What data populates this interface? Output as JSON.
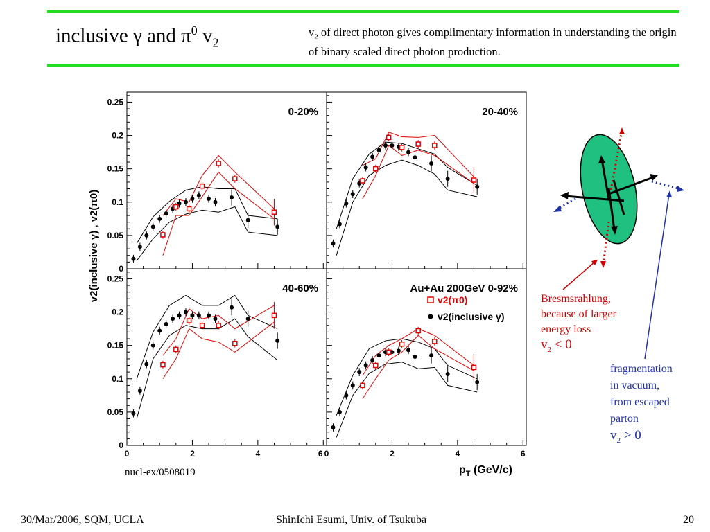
{
  "header": {
    "title_main": "inclusive γ and π",
    "title_sup": "0",
    "title_v": " v",
    "title_sub": "2",
    "subtitle_v": "v",
    "subtitle_sub": "2",
    "subtitle_rest": " of direct photon gives complimentary information in understanding the origin of binary scaled direct photon production."
  },
  "colors": {
    "rule": "#22dd22",
    "pi0": "#e00000",
    "gamma": "#000000",
    "ellipse": "#20c080",
    "blue_arrow": "#2233aa",
    "red_arrow": "#d00000"
  },
  "chart_data": {
    "type": "scatter",
    "x_axis_label": "p",
    "x_axis_label_sub": "T",
    "x_axis_label_rest": " (GeV/c)",
    "y_axis_label": "v2(inclusive γ) ,  v2(π0)",
    "y_ticks": [
      "0",
      "0.05",
      "0.1",
      "0.15",
      "0.2",
      "0.25"
    ],
    "x_ticks": [
      "0",
      "2",
      "4",
      "6"
    ],
    "xlim": [
      0,
      6.1
    ],
    "ylim": [
      0,
      0.265
    ],
    "legend": {
      "pi0": "v2(π0)",
      "gamma": "v2(inclusive γ)",
      "placement": "top-right of bottom-right panel"
    },
    "panels": [
      {
        "label": "0-20%",
        "gamma": {
          "x": [
            0.2,
            0.4,
            0.6,
            0.8,
            1.0,
            1.2,
            1.4,
            1.6,
            1.8,
            2.0,
            2.2,
            2.5,
            2.7,
            3.2,
            3.7,
            4.6
          ],
          "y": [
            0.015,
            0.033,
            0.05,
            0.063,
            0.075,
            0.083,
            0.09,
            0.098,
            0.1,
            0.105,
            0.11,
            0.105,
            0.1,
            0.107,
            0.073,
            0.063
          ]
        },
        "pi0": {
          "x": [
            1.1,
            1.5,
            1.9,
            2.3,
            2.8,
            3.3,
            4.5
          ],
          "y": [
            0.051,
            0.093,
            0.09,
            0.124,
            0.158,
            0.135,
            0.085
          ]
        },
        "gamma_band_upper": {
          "x": [
            0.3,
            0.8,
            1.3,
            1.8,
            2.3,
            2.8,
            3.3,
            3.7,
            4.6
          ],
          "y": [
            0.038,
            0.078,
            0.101,
            0.118,
            0.123,
            0.12,
            0.12,
            0.08,
            0.075
          ]
        },
        "gamma_band_lower": {
          "x": [
            0.3,
            0.8,
            1.3,
            1.8,
            2.3,
            2.8,
            3.3,
            3.7,
            4.6
          ],
          "y": [
            0.012,
            0.045,
            0.07,
            0.082,
            0.088,
            0.085,
            0.093,
            0.055,
            0.05
          ]
        },
        "pi0_band_upper": {
          "x": [
            1.1,
            1.5,
            1.9,
            2.3,
            2.8,
            3.3,
            4.5
          ],
          "y": [
            0.08,
            0.105,
            0.1,
            0.14,
            0.17,
            0.145,
            0.09
          ]
        },
        "pi0_band_lower": {
          "x": [
            1.1,
            1.5,
            1.9,
            2.3,
            2.8,
            3.3,
            4.5
          ],
          "y": [
            0.02,
            0.08,
            0.08,
            0.108,
            0.145,
            0.12,
            0.075
          ]
        }
      },
      {
        "label": "20-40%",
        "gamma": {
          "x": [
            0.2,
            0.4,
            0.6,
            0.8,
            1.0,
            1.2,
            1.4,
            1.6,
            1.8,
            2.0,
            2.2,
            2.5,
            2.7,
            3.2,
            3.7,
            4.6
          ],
          "y": [
            0.038,
            0.067,
            0.098,
            0.112,
            0.128,
            0.152,
            0.168,
            0.178,
            0.185,
            0.185,
            0.183,
            0.175,
            0.167,
            0.158,
            0.135,
            0.123
          ]
        },
        "pi0": {
          "x": [
            1.1,
            1.5,
            1.9,
            2.3,
            2.8,
            3.3,
            4.5
          ],
          "y": [
            0.132,
            0.15,
            0.197,
            0.182,
            0.187,
            0.185,
            0.133
          ]
        },
        "gamma_band_upper": {
          "x": [
            0.3,
            0.8,
            1.3,
            1.8,
            2.3,
            2.8,
            3.3,
            3.7,
            4.6
          ],
          "y": [
            0.06,
            0.135,
            0.172,
            0.19,
            0.188,
            0.18,
            0.172,
            0.152,
            0.125
          ]
        },
        "gamma_band_lower": {
          "x": [
            0.3,
            0.8,
            1.3,
            1.8,
            2.3,
            2.8,
            3.3,
            3.7,
            4.6
          ],
          "y": [
            0.02,
            0.1,
            0.14,
            0.155,
            0.163,
            0.155,
            0.142,
            0.118,
            0.108
          ]
        },
        "pi0_band_upper": {
          "x": [
            1.1,
            1.5,
            1.9,
            2.3,
            2.8,
            3.3,
            4.5
          ],
          "y": [
            0.155,
            0.165,
            0.205,
            0.198,
            0.197,
            0.2,
            0.138
          ]
        },
        "pi0_band_lower": {
          "x": [
            1.1,
            1.5,
            1.9,
            2.3,
            2.8,
            3.3,
            4.5
          ],
          "y": [
            0.105,
            0.14,
            0.185,
            0.17,
            0.178,
            0.17,
            0.128
          ]
        }
      },
      {
        "label": "40-60%",
        "gamma": {
          "x": [
            0.2,
            0.4,
            0.6,
            0.8,
            1.0,
            1.2,
            1.4,
            1.6,
            1.8,
            2.0,
            2.2,
            2.5,
            2.7,
            3.2,
            3.7,
            4.6
          ],
          "y": [
            0.048,
            0.082,
            0.122,
            0.15,
            0.172,
            0.182,
            0.19,
            0.195,
            0.2,
            0.195,
            0.195,
            0.195,
            0.19,
            0.207,
            0.19,
            0.157
          ]
        },
        "pi0": {
          "x": [
            1.1,
            1.5,
            1.9,
            2.3,
            2.8,
            3.3,
            4.5
          ],
          "y": [
            0.121,
            0.144,
            0.187,
            0.18,
            0.18,
            0.153,
            0.195
          ]
        },
        "gamma_band_upper": {
          "x": [
            0.3,
            0.8,
            1.3,
            1.8,
            2.3,
            2.8,
            3.3,
            3.7,
            4.6
          ],
          "y": [
            0.1,
            0.17,
            0.21,
            0.225,
            0.21,
            0.21,
            0.225,
            0.195,
            0.175
          ]
        },
        "gamma_band_lower": {
          "x": [
            0.3,
            0.8,
            1.3,
            1.8,
            2.3,
            2.8,
            3.3,
            3.7,
            4.6
          ],
          "y": [
            0.04,
            0.13,
            0.165,
            0.18,
            0.175,
            0.175,
            0.19,
            0.163,
            0.128
          ]
        },
        "pi0_band_upper": {
          "x": [
            1.1,
            1.5,
            1.9,
            2.3,
            2.8,
            3.3,
            4.5
          ],
          "y": [
            0.135,
            0.16,
            0.205,
            0.19,
            0.195,
            0.175,
            0.21
          ]
        },
        "pi0_band_lower": {
          "x": [
            1.1,
            1.5,
            1.9,
            2.3,
            2.8,
            3.3,
            4.5
          ],
          "y": [
            0.1,
            0.13,
            0.175,
            0.16,
            0.155,
            0.14,
            0.185
          ]
        }
      },
      {
        "label": "Au+Au 200GeV   0-92%",
        "gamma": {
          "x": [
            0.2,
            0.4,
            0.6,
            0.8,
            1.0,
            1.2,
            1.4,
            1.6,
            1.8,
            2.0,
            2.2,
            2.5,
            2.7,
            3.2,
            3.7,
            4.6
          ],
          "y": [
            0.027,
            0.05,
            0.075,
            0.09,
            0.11,
            0.12,
            0.128,
            0.135,
            0.14,
            0.14,
            0.142,
            0.143,
            0.133,
            0.135,
            0.107,
            0.095
          ]
        },
        "pi0": {
          "x": [
            1.1,
            1.5,
            1.9,
            2.3,
            2.8,
            3.3,
            4.5
          ],
          "y": [
            0.09,
            0.12,
            0.14,
            0.152,
            0.172,
            0.156,
            0.117
          ]
        },
        "gamma_band_upper": {
          "x": [
            0.3,
            0.8,
            1.3,
            1.8,
            2.3,
            2.8,
            3.3,
            3.7,
            4.6
          ],
          "y": [
            0.045,
            0.105,
            0.145,
            0.157,
            0.16,
            0.155,
            0.145,
            0.12,
            0.1
          ]
        },
        "gamma_band_lower": {
          "x": [
            0.3,
            0.8,
            1.3,
            1.8,
            2.3,
            2.8,
            3.3,
            3.7,
            4.6
          ],
          "y": [
            0.012,
            0.075,
            0.108,
            0.122,
            0.125,
            0.115,
            0.117,
            0.09,
            0.08
          ]
        },
        "pi0_band_upper": {
          "x": [
            1.1,
            1.5,
            1.9,
            2.3,
            2.8,
            3.3,
            4.5
          ],
          "y": [
            0.105,
            0.135,
            0.15,
            0.16,
            0.175,
            0.165,
            0.12
          ]
        },
        "pi0_band_lower": {
          "x": [
            1.1,
            1.5,
            1.9,
            2.3,
            2.8,
            3.3,
            4.5
          ],
          "y": [
            0.07,
            0.1,
            0.128,
            0.14,
            0.165,
            0.145,
            0.112
          ]
        }
      }
    ]
  },
  "reference": "nucl-ex/0508019",
  "annotations": {
    "red_lines": [
      "Bresmsrahlung,",
      "because of larger",
      "energy loss"
    ],
    "red_v": "v",
    "red_sub": "2",
    "red_rel": " < 0",
    "blue_lines": [
      "fragmentation",
      "in vacuum,",
      "from escaped",
      "parton"
    ],
    "blue_v": "v",
    "blue_sub": "2",
    "blue_rel": " > 0"
  },
  "footer": {
    "left": "30/Mar/2006, SQM, UCLA",
    "center": "ShinIchi Esumi, Univ. of Tsukuba",
    "right": "20"
  }
}
